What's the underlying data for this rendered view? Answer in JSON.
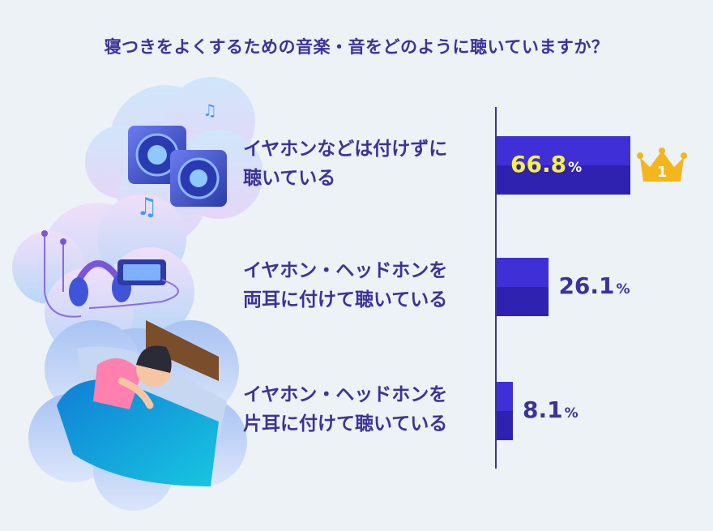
{
  "title": "寝つきをよくするための音楽・音をどのように聴いていますか？",
  "chart_data": {
    "type": "bar",
    "orientation": "horizontal",
    "categories": [
      "イヤホンなどは付けずに\n聴いている",
      "イヤホン・ヘッドホンを\n両耳に付けて聴いている",
      "イヤホン・ヘッドホンを\n片耳に付けて聴いている"
    ],
    "values": [
      66.8,
      26.1,
      8.1
    ],
    "value_labels": [
      "66.8",
      "26.1",
      "8.1"
    ],
    "unit": "%",
    "rank_badge": "1",
    "colors": {
      "bar_top": "#3f2fd6",
      "bar_bottom": "#2f22b0",
      "text": "#3b3399",
      "highlight": "#f6f04a",
      "crown": "#f5b51c"
    }
  }
}
